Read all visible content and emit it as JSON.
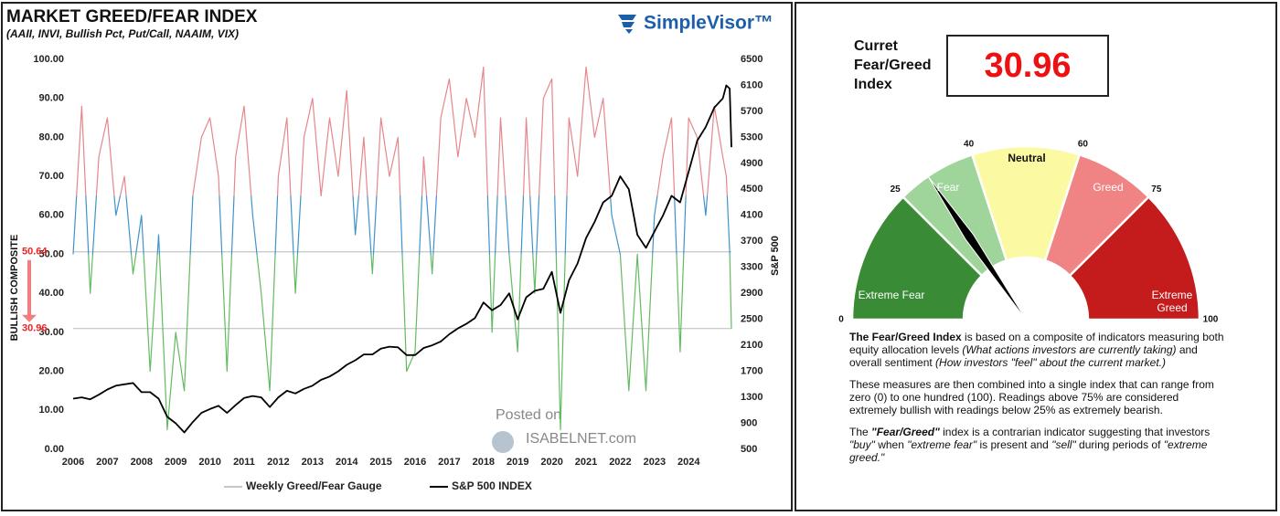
{
  "chart_data": [
    {
      "type": "line",
      "title": "MARKET GREED/FEAR INDEX",
      "subtitle": "(AAII, INVI, Bullish Pct, Put/Call, NAAIM, VIX)",
      "logo": "SimpleVisor™",
      "watermark": [
        "Posted on",
        "ISABELNET.com"
      ],
      "ylabel": "BULLISH COMPOSITE",
      "y2label": "S&P 500",
      "x": [
        2006,
        2006.25,
        2006.5,
        2006.75,
        2007,
        2007.25,
        2007.5,
        2007.75,
        2008,
        2008.25,
        2008.5,
        2008.75,
        2009,
        2009.25,
        2009.5,
        2009.75,
        2010,
        2010.25,
        2010.5,
        2010.75,
        2011,
        2011.25,
        2011.5,
        2011.75,
        2012,
        2012.25,
        2012.5,
        2012.75,
        2013,
        2013.25,
        2013.5,
        2013.75,
        2014,
        2014.25,
        2014.5,
        2014.75,
        2015,
        2015.25,
        2015.5,
        2015.75,
        2016,
        2016.25,
        2016.5,
        2016.75,
        2017,
        2017.25,
        2017.5,
        2017.75,
        2018,
        2018.25,
        2018.5,
        2018.75,
        2019,
        2019.25,
        2019.5,
        2019.75,
        2020,
        2020.25,
        2020.5,
        2020.75,
        2021,
        2021.25,
        2021.5,
        2021.75,
        2022,
        2022.25,
        2022.5,
        2022.75,
        2023,
        2023.25,
        2023.5,
        2023.75,
        2024,
        2024.25,
        2024.5,
        2024.75,
        2025,
        2025.1,
        2025.2,
        2025.25
      ],
      "xlim": [
        2006,
        2025.25
      ],
      "xticks": [
        2006,
        2007,
        2008,
        2009,
        2010,
        2011,
        2012,
        2013,
        2014,
        2015,
        2016,
        2017,
        2018,
        2019,
        2020,
        2021,
        2022,
        2023,
        2024
      ],
      "ylim": [
        0,
        100
      ],
      "yticks": [
        {
          "value": 0,
          "label": "0.00"
        },
        {
          "value": 10,
          "label": "10.00"
        },
        {
          "value": 20,
          "label": "20.00"
        },
        {
          "value": 30,
          "label": "30.00"
        },
        {
          "value": 40,
          "label": "40.00"
        },
        {
          "value": 50,
          "label": "50.00"
        },
        {
          "value": 60,
          "label": "60.00"
        },
        {
          "value": 70,
          "label": "70.00"
        },
        {
          "value": 80,
          "label": "80.00"
        },
        {
          "value": 90,
          "label": "90.00"
        },
        {
          "value": 100,
          "label": "100.00"
        }
      ],
      "y2lim": [
        500,
        6500
      ],
      "y2ticks": [
        500,
        900,
        1300,
        1700,
        2100,
        2500,
        2900,
        3300,
        3700,
        4100,
        4500,
        4900,
        5300,
        5700,
        6100,
        6500
      ],
      "reference_lines": [
        50.64,
        30.96
      ],
      "series": [
        {
          "name": "Weekly Greed/Fear Gauge",
          "color": "#c8c8c8",
          "color_ranges": [
            {
              "min": 65,
              "color": "#e7868c"
            },
            {
              "min": 50,
              "color": "#3f93cc"
            },
            {
              "min": 0,
              "color": "#62bb62"
            }
          ],
          "values": [
            50,
            88,
            40,
            75,
            85,
            60,
            70,
            45,
            60,
            20,
            55,
            5,
            30,
            15,
            65,
            80,
            85,
            70,
            20,
            75,
            88,
            60,
            40,
            15,
            70,
            85,
            40,
            80,
            90,
            65,
            85,
            70,
            92,
            55,
            80,
            45,
            85,
            70,
            80,
            20,
            25,
            75,
            45,
            85,
            95,
            75,
            90,
            80,
            98,
            30,
            85,
            50,
            25,
            85,
            40,
            90,
            95,
            5,
            85,
            70,
            98,
            80,
            90,
            60,
            50,
            15,
            50,
            15,
            60,
            75,
            85,
            25,
            85,
            80,
            60,
            88,
            75,
            70,
            50.64,
            30.96
          ]
        },
        {
          "name": "S&P 500 INDEX",
          "color": "#000000",
          "axis": "y2",
          "values": [
            1280,
            1300,
            1270,
            1340,
            1420,
            1480,
            1500,
            1520,
            1380,
            1380,
            1280,
            1000,
            900,
            760,
            920,
            1060,
            1120,
            1170,
            1060,
            1180,
            1290,
            1320,
            1300,
            1150,
            1300,
            1400,
            1360,
            1430,
            1480,
            1570,
            1620,
            1700,
            1800,
            1870,
            1960,
            1960,
            2050,
            2080,
            2070,
            1950,
            1950,
            2060,
            2100,
            2160,
            2270,
            2360,
            2430,
            2520,
            2760,
            2640,
            2720,
            2900,
            2500,
            2840,
            2940,
            2970,
            3230,
            2600,
            3100,
            3360,
            3750,
            4000,
            4300,
            4400,
            4700,
            4500,
            3800,
            3600,
            3850,
            4100,
            4400,
            4300,
            4770,
            5250,
            5460,
            5760,
            5900,
            6100,
            6050,
            5150
          ]
        }
      ]
    },
    {
      "type": "gauge",
      "title": "Curret Fear/Greed Index",
      "value": 30.96,
      "lim": [
        0,
        100
      ],
      "ticks": [
        0,
        25,
        40,
        60,
        75,
        100
      ],
      "bands": [
        {
          "label": "Extreme Fear",
          "color": "#3a8b35"
        },
        {
          "label": "Fear",
          "color": "#9fd59a"
        },
        {
          "label": "Neutral",
          "color": "#fbfaa2"
        },
        {
          "label": "Greed",
          "color": "#f08484"
        },
        {
          "label": "Extreme Greed",
          "color": "#c41c1c"
        }
      ]
    }
  ],
  "description": {
    "paragraphs": [
      [
        {
          "text": "The Fear/Greed Index",
          "style": "bold"
        },
        {
          "text": " is based on a composite of indicators measuring both equity allocation levels ",
          "style": "normal"
        },
        {
          "text": "(What actions investors are currently taking)",
          "style": "italic"
        },
        {
          "text": " and overall sentiment ",
          "style": "normal"
        },
        {
          "text": "(How investors \"feel\" about the current market.)",
          "style": "italic"
        }
      ],
      [
        {
          "text": "These measures are then combined into a single index that can range from zero (0) to one hundred (100). Readings above 75% are considered extremely bullish with readings below 25% as extremely bearish.",
          "style": "normal"
        }
      ],
      [
        {
          "text": "The ",
          "style": "normal"
        },
        {
          "text": "\"Fear/Greed\"",
          "style": "bold-italic"
        },
        {
          "text": " index is a contrarian indicator suggesting that investors ",
          "style": "normal"
        },
        {
          "text": "\"buy\"",
          "style": "italic"
        },
        {
          "text": " when ",
          "style": "normal"
        },
        {
          "text": "\"extreme fear\"",
          "style": "italic"
        },
        {
          "text": " is present and ",
          "style": "normal"
        },
        {
          "text": "\"sell\"",
          "style": "italic"
        },
        {
          "text": " during periods of ",
          "style": "normal"
        },
        {
          "text": "\"extreme greed.\"",
          "style": "italic"
        }
      ]
    ]
  }
}
